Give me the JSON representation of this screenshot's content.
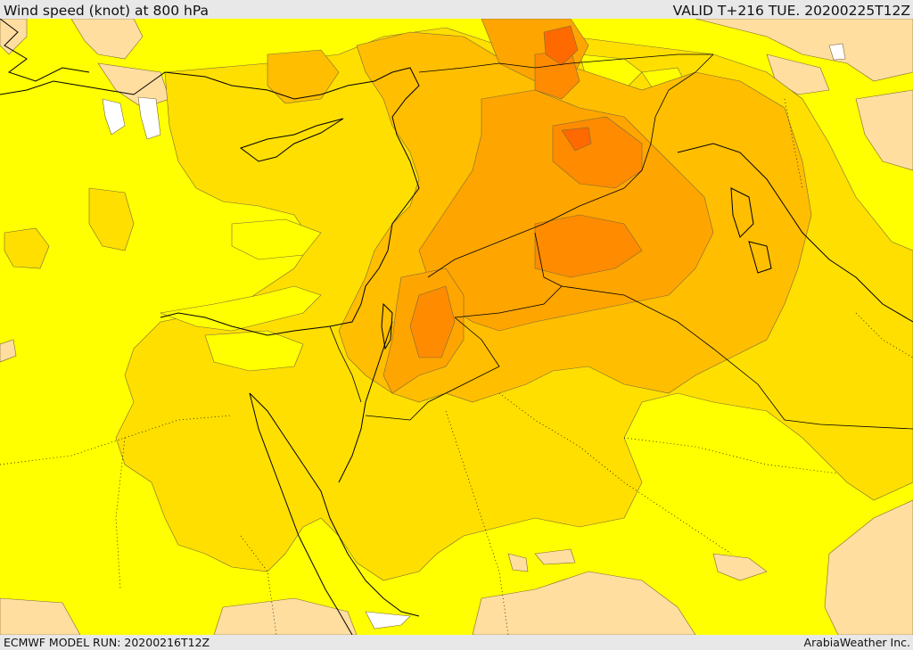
{
  "header": {
    "title": "Wind speed (knot) at 800 hPa",
    "valid": "VALID T+216 TUE. 20200225T12Z"
  },
  "footer": {
    "model_run": "ECMWF MODEL RUN: 20200216T12Z",
    "credit": "ArabiaWeather Inc."
  },
  "map": {
    "field": "wind-speed-shading",
    "colors": {
      "calm_white": "#ffffff",
      "light_tan": "#ffdea0",
      "yellow": "#ffff00",
      "gold": "#ffdf00",
      "amber": "#ffbe00",
      "orange_light": "#ffa500",
      "orange": "#ff8c00",
      "orange_dark": "#ff6a00",
      "coast_line": "#000000",
      "contour_line": "#5a4a1a"
    }
  }
}
